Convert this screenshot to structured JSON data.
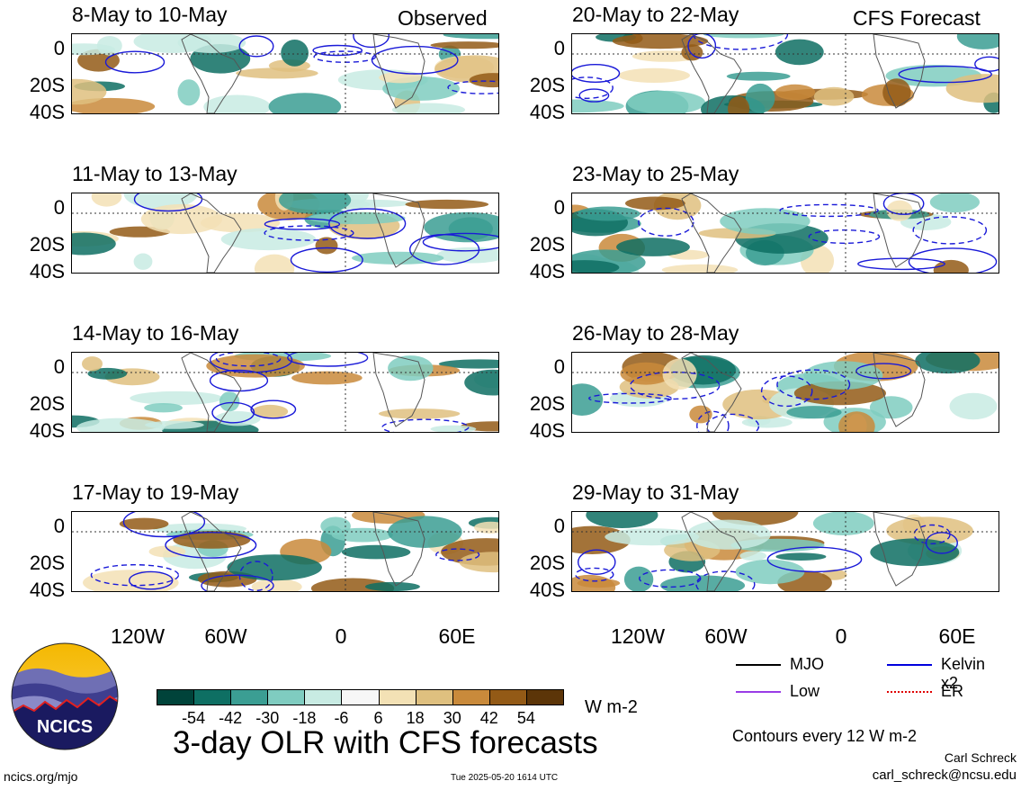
{
  "labels": {
    "observed": "Observed",
    "forecast": "CFS Forecast"
  },
  "panels_left": [
    {
      "title": "8-May to 10-May"
    },
    {
      "title": "11-May to 13-May"
    },
    {
      "title": "14-May to 16-May"
    },
    {
      "title": "17-May to 19-May"
    }
  ],
  "panels_right": [
    {
      "title": "20-May to 22-May"
    },
    {
      "title": "23-May to 25-May"
    },
    {
      "title": "26-May to 28-May"
    },
    {
      "title": "29-May to 31-May"
    }
  ],
  "y_ticks": [
    "0",
    "20S",
    "40S"
  ],
  "x_ticks": [
    "120W",
    "60W",
    "0",
    "60E"
  ],
  "colorbar": {
    "labels": [
      "-54",
      "-42",
      "-30",
      "-18",
      "-6",
      "6",
      "18",
      "30",
      "42",
      "54"
    ],
    "colors": [
      "#00433a",
      "#0e6f63",
      "#3b9e93",
      "#7fccc0",
      "#c8ebe3",
      "#f7f7f7",
      "#f3e1b5",
      "#dfc07f",
      "#c98a3b",
      "#935a16",
      "#5c3508"
    ],
    "units": "W m-2"
  },
  "title": "3-day OLR with CFS forecasts",
  "legend": {
    "mjo": "MJO",
    "kelvin": "Kelvin x2",
    "low": "Low",
    "er": "ER",
    "mjo_color": "#000000",
    "kelvin_color": "#0000dd",
    "low_color": "#9a3ce6",
    "er_color": "#e00000"
  },
  "contours_note": "Contours every 12 W m-2",
  "author": "Carl Schreck",
  "email": "carl_schreck@ncsu.edu",
  "website": "ncics.org/mjo",
  "timestamp": "Tue 2025-05-20 1614 UTC",
  "logo_text": "NCICS"
}
